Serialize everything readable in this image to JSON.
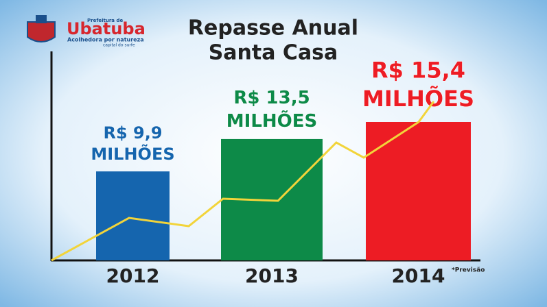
{
  "logo": {
    "top": "Prefeitura de",
    "name": "Ubatuba",
    "tagline": "Acolhedora por natureza",
    "subtag": "capital do surfe"
  },
  "chart_data": {
    "type": "bar",
    "title": "Repasse Anual",
    "subtitle": "Santa Casa",
    "categories": [
      "2012",
      "2013",
      "2014"
    ],
    "values": [
      9.9,
      13.5,
      15.4
    ],
    "value_labels": [
      "R$ 9,9 MILHÕES",
      "R$ 13,5 MILHÕES",
      "R$ 15,4 MILHÕES"
    ],
    "colors": [
      "#1565ae",
      "#0d8a48",
      "#ed1c24"
    ],
    "annotation": "*Previsão"
  }
}
